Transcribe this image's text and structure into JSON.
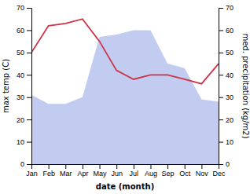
{
  "chart_data": {
    "type": "line",
    "categories": [
      "Jan",
      "Feb",
      "Mar",
      "Apr",
      "May",
      "Jun",
      "Jul",
      "Aug",
      "Sep",
      "Oct",
      "Nov",
      "Dec"
    ],
    "series": [
      {
        "type": "area",
        "axis": "y2",
        "color": "#bbc5ee",
        "values": [
          31,
          27,
          27,
          30,
          57,
          58,
          60,
          60,
          45,
          43,
          29,
          28
        ]
      },
      {
        "type": "line",
        "color": "#cc3344",
        "values": [
          50,
          62,
          63,
          65,
          55,
          42,
          38,
          40,
          40,
          38,
          36,
          45
        ]
      }
    ],
    "xlabel": "date (month)",
    "ylabel": "max temp (C)",
    "y2label": "med. precipitation (kg/m2)",
    "ylim": [
      0,
      70
    ],
    "yticks": [
      0,
      10,
      20,
      30,
      40,
      50,
      60,
      70
    ],
    "y2lim": [
      0,
      70
    ],
    "y2ticks": [
      0,
      10,
      20,
      30,
      40,
      50,
      60,
      70
    ],
    "grid": false
  }
}
